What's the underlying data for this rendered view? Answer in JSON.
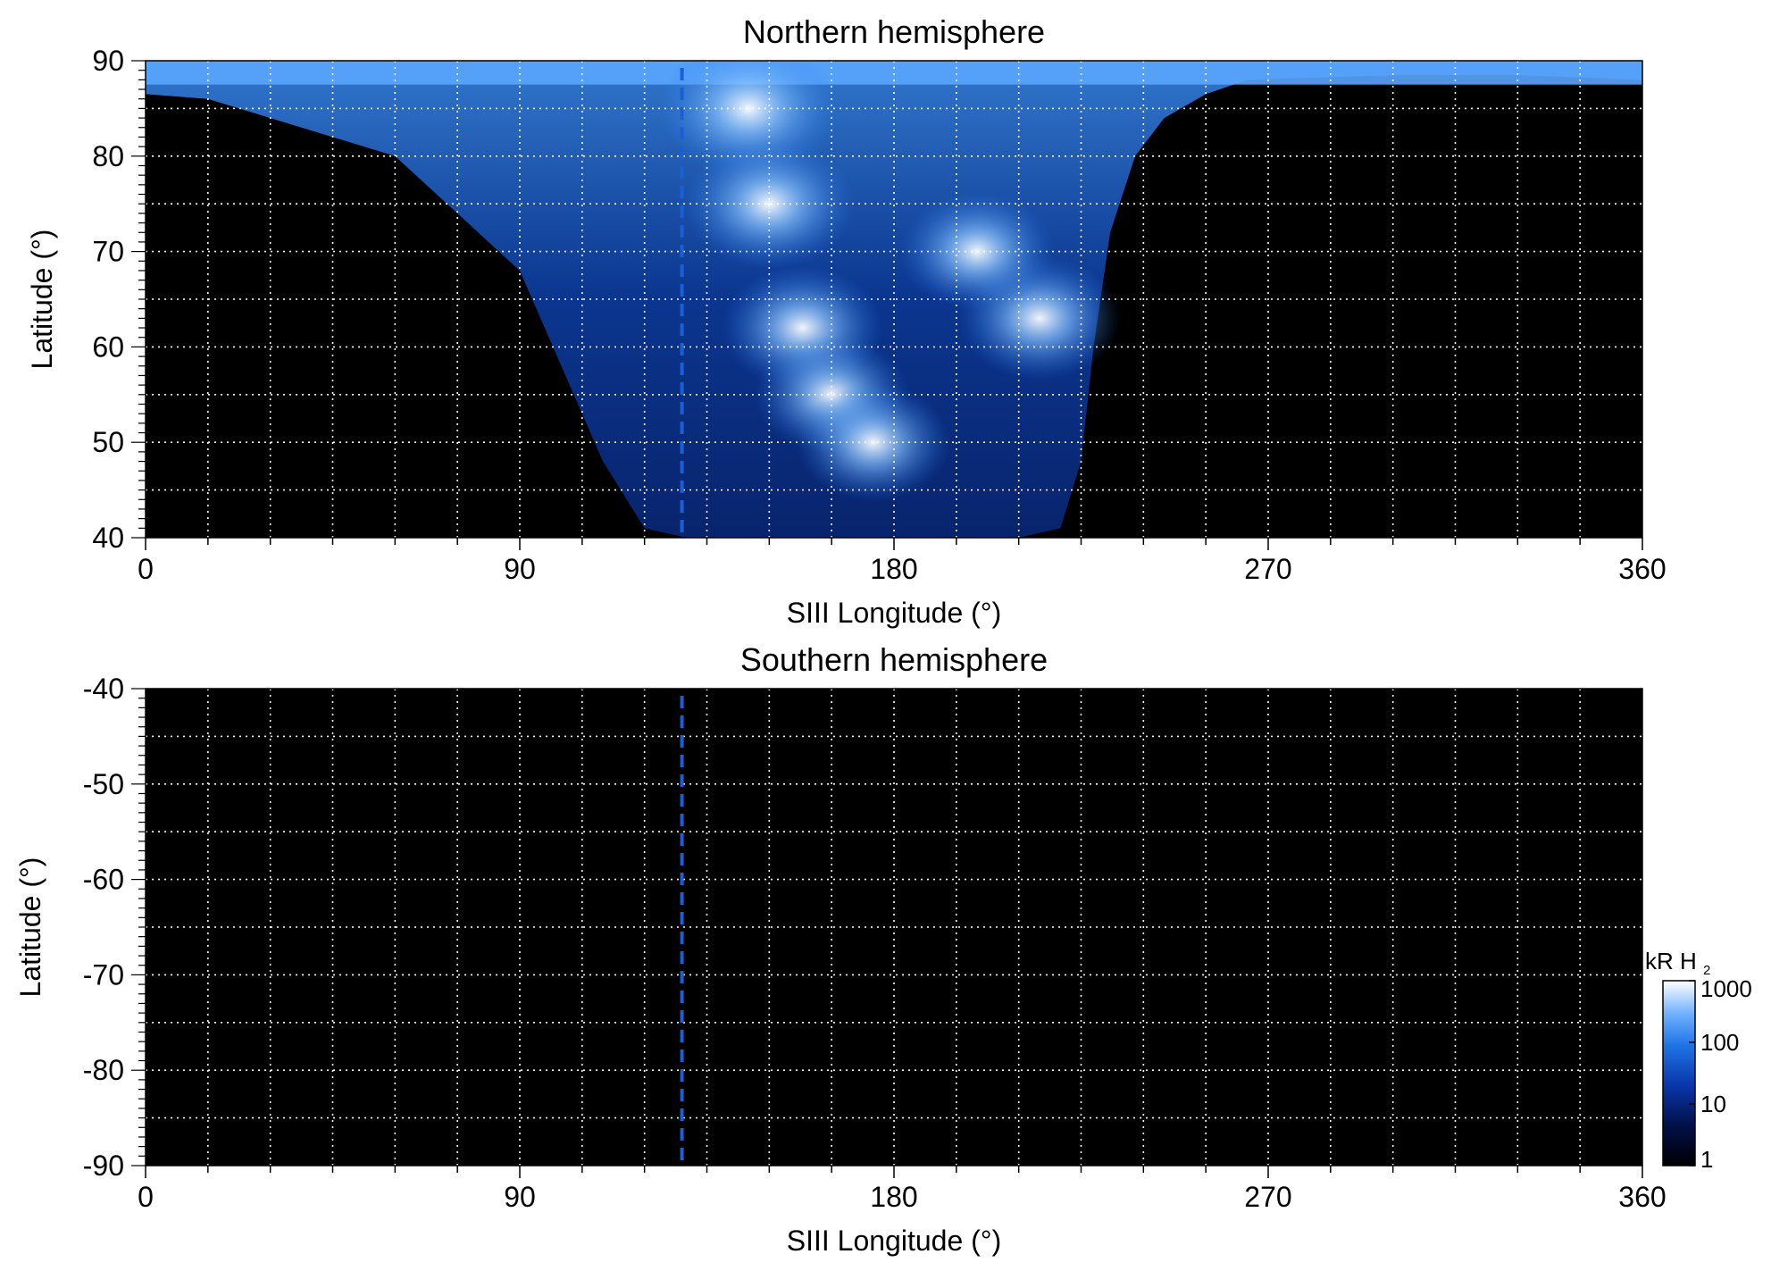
{
  "chart_data": [
    {
      "type": "heatmap",
      "title": "Northern hemisphere",
      "xlabel": "SIII Longitude (°)",
      "ylabel": "Latitude (°)",
      "xlim": [
        0,
        360
      ],
      "ylim": [
        40,
        90
      ],
      "xticks": [
        0,
        90,
        180,
        270,
        360
      ],
      "yticks": [
        40,
        50,
        60,
        70,
        80,
        90
      ],
      "grid": true,
      "reference_line_longitude": 129,
      "description_of_field": "auroral H2 emission brightness map",
      "emission_region": {
        "lower_boundary": [
          [
            0,
            86.5
          ],
          [
            15,
            86
          ],
          [
            30,
            84
          ],
          [
            60,
            80
          ],
          [
            90,
            68
          ],
          [
            110,
            48
          ],
          [
            120,
            41
          ],
          [
            130,
            40
          ],
          [
            150,
            40
          ],
          [
            180,
            40
          ],
          [
            210,
            40
          ],
          [
            220,
            41
          ],
          [
            225,
            48
          ],
          [
            228,
            60
          ],
          [
            232,
            72
          ],
          [
            238,
            80
          ],
          [
            245,
            84
          ],
          [
            255,
            86.5
          ],
          [
            265,
            88
          ],
          [
            300,
            88.5
          ],
          [
            330,
            88.5
          ],
          [
            360,
            88
          ]
        ],
        "upper_limit": 90
      },
      "bright_features": [
        {
          "lon": 145,
          "lat": 85,
          "value": 1000
        },
        {
          "lon": 150,
          "lat": 75,
          "value": 500
        },
        {
          "lon": 158,
          "lat": 62,
          "value": 300
        },
        {
          "lon": 165,
          "lat": 55,
          "value": 200
        },
        {
          "lon": 175,
          "lat": 50,
          "value": 200
        },
        {
          "lon": 215,
          "lat": 63,
          "value": 300
        },
        {
          "lon": 200,
          "lat": 70,
          "value": 200
        }
      ]
    },
    {
      "type": "heatmap",
      "title": "Southern hemisphere",
      "xlabel": "SIII Longitude (°)",
      "ylabel": "Latitude (°)",
      "xlim": [
        0,
        360
      ],
      "ylim": [
        -90,
        -40
      ],
      "xticks": [
        0,
        90,
        180,
        270,
        360
      ],
      "yticks": [
        -40,
        -50,
        -60,
        -70,
        -80,
        -90
      ],
      "grid": true,
      "reference_line_longitude": 129,
      "emission_region": null
    }
  ],
  "colorbar": {
    "label_main": "kR H",
    "label_sub": "2",
    "ticks": [
      1,
      10,
      100,
      1000
    ],
    "scale": "log",
    "colors": [
      "#000000",
      "#02104a",
      "#0a3ab0",
      "#1f74e6",
      "#6fb0ff",
      "#ffffff"
    ]
  },
  "colors": {
    "background": "#000000",
    "grid": "#ffffff",
    "reference_line": "#1b5fd6"
  }
}
